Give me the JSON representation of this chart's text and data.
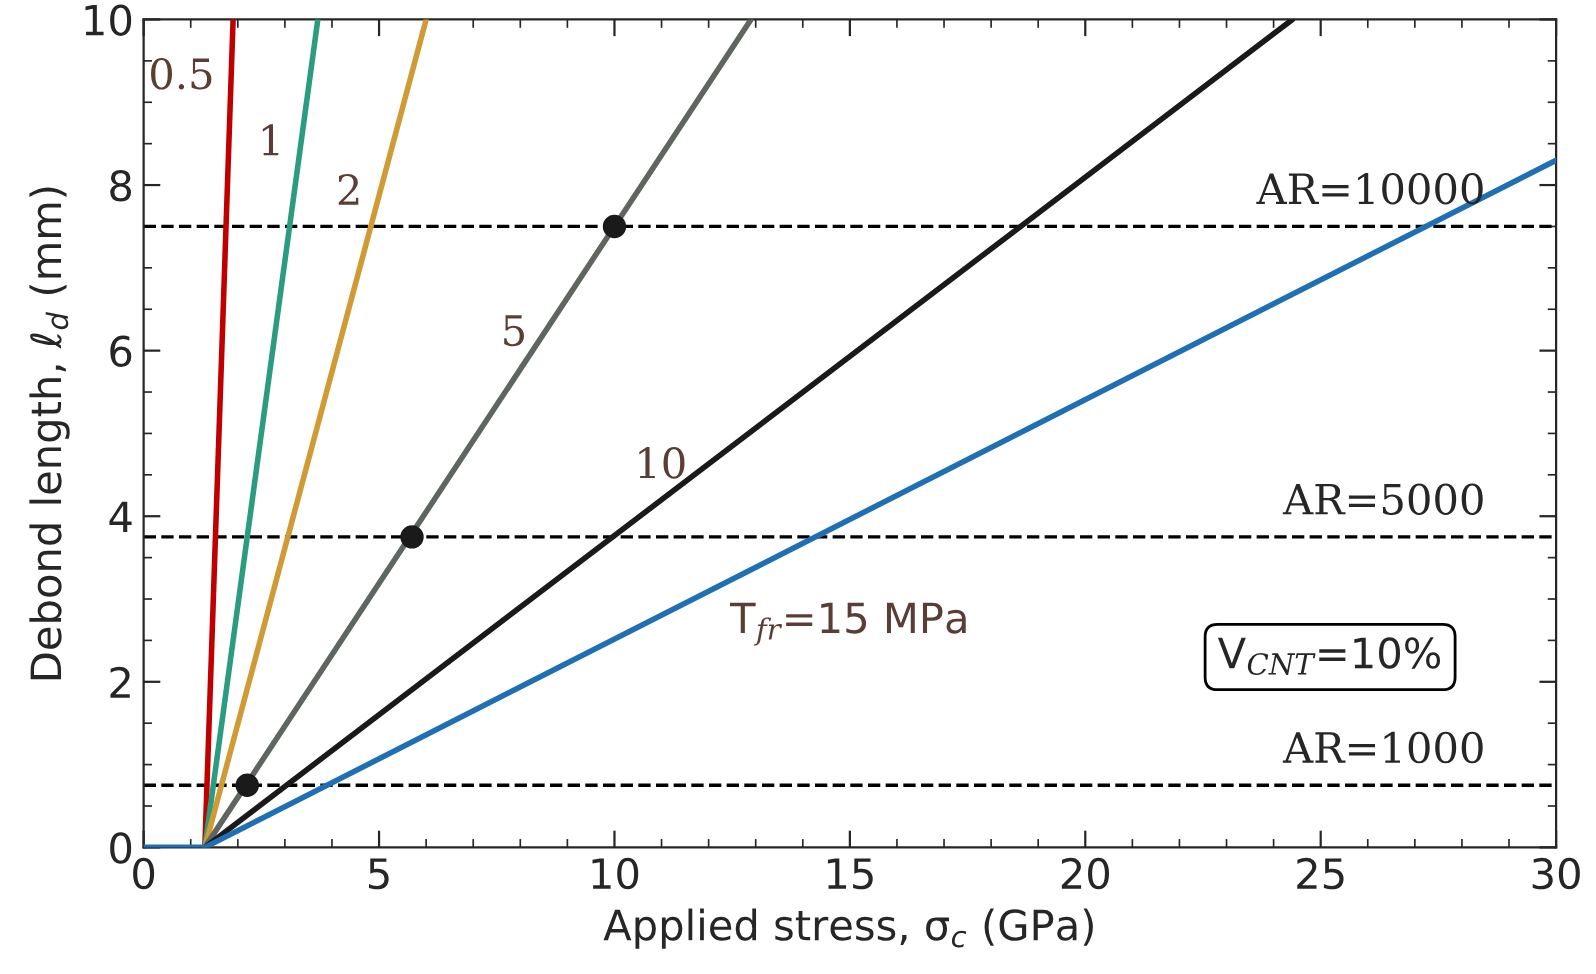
{
  "chart_data": {
    "type": "line",
    "xlabel": "Applied stress, σ$_{c}$ (GPa)",
    "ylabel": "Debond length, ℓ$_{d}$ (mm)",
    "series": [
      {
        "color": "#c00000",
        "x": [
          1.3,
          1.9
        ],
        "values": [
          0,
          10
        ]
      },
      {
        "color": "#2a9d80",
        "x": [
          1.3,
          3.7
        ],
        "values": [
          0,
          10
        ]
      },
      {
        "color": "#d09a35",
        "x": [
          1.3,
          6.0
        ],
        "values": [
          0,
          10
        ]
      },
      {
        "color": "#5f6660",
        "x": [
          1.3,
          12.9
        ],
        "values": [
          0,
          10
        ]
      },
      {
        "color": "#1a1a1a",
        "x": [
          1.3,
          24.4
        ],
        "values": [
          0,
          10
        ]
      },
      {
        "name": "T$_{fr}$=15 MPa",
        "color": "#1f6fb5",
        "x": [
          0,
          1.3,
          30
        ],
        "values": [
          0,
          0,
          8.3
        ]
      },
      {
        "type": "scatter",
        "color": "#1a1a1a",
        "x": [
          2.2,
          5.7,
          10
        ],
        "values": [
          0.75,
          3.75,
          7.5
        ]
      }
    ],
    "ref_lines": [
      {
        "axis": "y",
        "value": 0.75,
        "color": "#000000",
        "line_style": "dashed"
      },
      {
        "axis": "y",
        "value": 3.75,
        "color": "#000000",
        "line_style": "dashed"
      },
      {
        "axis": "y",
        "value": 7.5,
        "color": "#000000",
        "line_style": "dashed"
      }
    ],
    "annotations": [
      {
        "text": "0.5",
        "x": 1.86,
        "y": 9.3
      },
      {
        "text": "1",
        "x": 3.34,
        "y": 8.5
      },
      {
        "text": "2",
        "x": 5.0,
        "y": 7.9
      },
      {
        "text": "5",
        "x": 8.5,
        "y": 6.2
      },
      {
        "text": "10",
        "x": 11.9,
        "y": 4.6
      },
      {
        "text": "AR=10000",
        "x": 28.5,
        "y": 7.5
      },
      {
        "text": "AR=5000",
        "x": 28.5,
        "y": 3.75
      },
      {
        "text": "AR=1000",
        "x": 28.5,
        "y": 0.75
      },
      "V$_{CNT}$=10%"
    ],
    "xlim": [
      0,
      30
    ],
    "ylim": [
      0,
      10
    ],
    "xticks": [
      0,
      5,
      10,
      15,
      20,
      25,
      30
    ],
    "yticks": [
      0,
      2,
      4,
      6,
      8,
      10
    ],
    "grid": false,
    "legend": false,
    "line_style": "solid"
  }
}
